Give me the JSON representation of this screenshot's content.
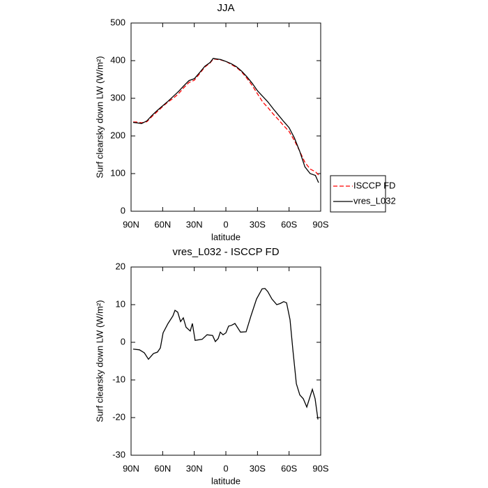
{
  "chart_data": [
    {
      "type": "line",
      "title": "JJA",
      "xlabel": "latitude",
      "ylabel": "Surf clearsky down LW (W/m²)",
      "x": [
        88,
        85,
        80,
        75,
        70,
        65,
        60,
        55,
        50,
        45,
        40,
        35,
        30,
        25,
        20,
        15,
        12,
        10,
        5,
        0,
        -5,
        -10,
        -15,
        -20,
        -25,
        -30,
        -35,
        -40,
        -45,
        -50,
        -55,
        -60,
        -65,
        -70,
        -75,
        -80,
        -85,
        -88
      ],
      "series": [
        {
          "name": "ISCCP FD",
          "color": "#ff0000",
          "style": "dashed",
          "values": [
            237,
            237,
            235,
            238,
            252,
            265,
            278,
            290,
            300,
            312,
            328,
            342,
            348,
            365,
            383,
            394,
            404,
            404,
            402,
            398,
            390,
            382,
            370,
            353,
            334,
            312,
            290,
            275,
            258,
            243,
            227,
            212,
            188,
            160,
            130,
            112,
            105,
            96
          ]
        },
        {
          "name": "vres_L032",
          "color": "#000000",
          "style": "solid",
          "values": [
            236,
            235,
            233,
            240,
            255,
            268,
            280,
            292,
            305,
            318,
            333,
            347,
            352,
            368,
            385,
            395,
            406,
            405,
            403,
            398,
            392,
            384,
            372,
            357,
            340,
            320,
            305,
            290,
            272,
            255,
            238,
            222,
            195,
            160,
            118,
            100,
            95,
            76
          ]
        }
      ],
      "xlim": [
        90,
        -90
      ],
      "xticks": [
        {
          "value": 90,
          "label": "90N"
        },
        {
          "value": 60,
          "label": "60N"
        },
        {
          "value": 30,
          "label": "30N"
        },
        0,
        {
          "value": -30,
          "label": "30S"
        },
        {
          "value": -60,
          "label": "60S"
        },
        {
          "value": -90,
          "label": "90S"
        }
      ],
      "ylim": [
        0,
        500
      ],
      "yticks": [
        0,
        100,
        200,
        300,
        400,
        500
      ],
      "legend": "right"
    },
    {
      "type": "line",
      "title": "vres_L032 - ISCCP FD",
      "xlabel": "latitude",
      "ylabel": "Surf clearsky down LW (W/m²)",
      "x": [
        88,
        82,
        77.4,
        73.5,
        68.8,
        64.9,
        62.2,
        59.6,
        54.9,
        50.3,
        48.3,
        45.7,
        43,
        40.4,
        37.8,
        33.8,
        31.8,
        29.2,
        22.5,
        17.9,
        12.6,
        10,
        7.3,
        5.3,
        2.7,
        0,
        -2.6,
        -5.3,
        -8.6,
        -13.9,
        -19.2,
        -23.8,
        -29.1,
        -34.4,
        -37.1,
        -39.7,
        -43.7,
        -48.3,
        -51.6,
        -54.9,
        -57.6,
        -60.9,
        -63.6,
        -66.9,
        -70.2,
        -73.5,
        -76.8,
        -82.1,
        -84.7,
        -87.4
      ],
      "series": [
        {
          "name": "vres_L032 - ISCCP FD",
          "color": "#000000",
          "style": "solid",
          "values": [
            -1.8,
            -2,
            -2.8,
            -4.5,
            -3,
            -2.6,
            -1.5,
            2.5,
            5,
            7,
            8.5,
            8,
            5.5,
            6.5,
            4,
            3,
            5,
            0.5,
            0.8,
            2,
            1.8,
            0.2,
            1,
            2.7,
            2,
            2.5,
            4.3,
            4.5,
            5,
            2.7,
            2.8,
            7,
            11.5,
            14.2,
            14.3,
            13.5,
            11.5,
            10,
            10.3,
            10.8,
            10.5,
            6,
            -2,
            -11,
            -14,
            -15,
            -17.2,
            -12.5,
            -15,
            -20.5
          ]
        }
      ],
      "xlim": [
        90,
        -90
      ],
      "xticks": [
        {
          "value": 90,
          "label": "90N"
        },
        {
          "value": 60,
          "label": "60N"
        },
        {
          "value": 30,
          "label": "30N"
        },
        0,
        {
          "value": -30,
          "label": "30S"
        },
        {
          "value": -60,
          "label": "60S"
        },
        {
          "value": -90,
          "label": "90S"
        }
      ],
      "ylim": [
        -30,
        20
      ],
      "yticks": [
        -30,
        -20,
        -10,
        0,
        10,
        20
      ]
    }
  ]
}
